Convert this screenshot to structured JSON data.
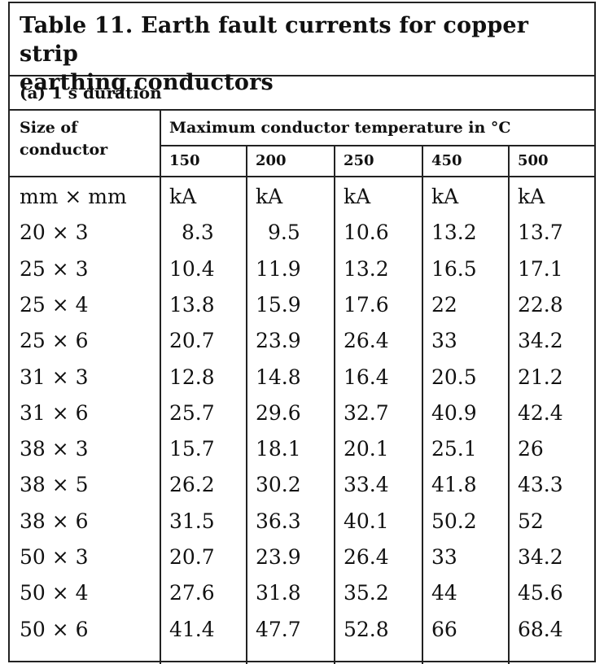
{
  "table": {
    "title_line1": "Table 11. Earth fault currents for copper strip",
    "title_line2": "earthing conductors",
    "subtitle": "(a) 1 s duration",
    "size_header_line1": "Size of",
    "size_header_line2": "conductor",
    "temp_header": "Maximum conductor temperature in °C",
    "temperatures": [
      "150",
      "200",
      "250",
      "450",
      "500"
    ],
    "units": {
      "size": "mm × mm",
      "values": [
        "kA",
        "kA",
        "kA",
        "kA",
        "kA"
      ]
    },
    "rows": [
      {
        "size": "20 × 3",
        "values": [
          "8.3",
          "9.5",
          "10.6",
          "13.2",
          "13.7"
        ]
      },
      {
        "size": "25 × 3",
        "values": [
          "10.4",
          "11.9",
          "13.2",
          "16.5",
          "17.1"
        ]
      },
      {
        "size": "25 × 4",
        "values": [
          "13.8",
          "15.9",
          "17.6",
          "22",
          "22.8"
        ]
      },
      {
        "size": "25 × 6",
        "values": [
          "20.7",
          "23.9",
          "26.4",
          "33",
          "34.2"
        ]
      },
      {
        "size": "31 × 3",
        "values": [
          "12.8",
          "14.8",
          "16.4",
          "20.5",
          "21.2"
        ]
      },
      {
        "size": "31 × 6",
        "values": [
          "25.7",
          "29.6",
          "32.7",
          "40.9",
          "42.4"
        ]
      },
      {
        "size": "38 × 3",
        "values": [
          "15.7",
          "18.1",
          "20.1",
          "25.1",
          "26"
        ]
      },
      {
        "size": "38 × 5",
        "values": [
          "26.2",
          "30.2",
          "33.4",
          "41.8",
          "43.3"
        ]
      },
      {
        "size": "38 × 6",
        "values": [
          "31.5",
          "36.3",
          "40.1",
          "50.2",
          "52"
        ]
      },
      {
        "size": "50 × 3",
        "values": [
          "20.7",
          "23.9",
          "26.4",
          "33",
          "34.2"
        ]
      },
      {
        "size": "50 × 4",
        "values": [
          "27.6",
          "31.8",
          "35.2",
          "44",
          "45.6"
        ]
      },
      {
        "size": "50 × 6",
        "values": [
          "41.4",
          "47.7",
          "52.8",
          "66",
          "68.4"
        ]
      }
    ]
  }
}
